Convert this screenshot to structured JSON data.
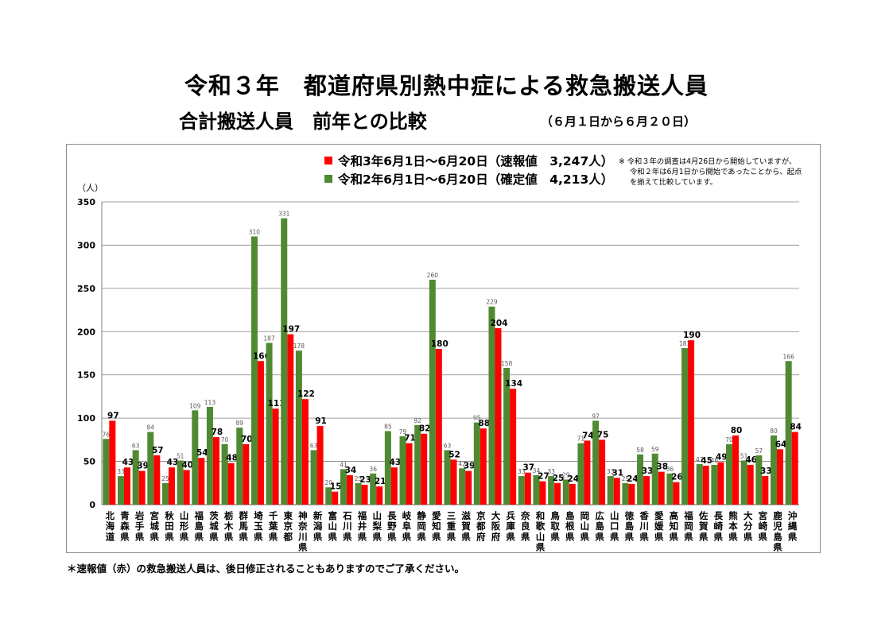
{
  "header": {
    "title_line1": "令和３年　都道府県別熱中症による救急搬送人員",
    "title_line2": "合計搬送人員　前年との比較",
    "period": "（６月１日から６月２０日）"
  },
  "legend": {
    "series_2021": "令和3年6月1日～6月20日（速報値　3,247人）",
    "series_2020": "令和2年6月1日～6月20日（確定値　4,213人）"
  },
  "note": {
    "line1": "※ 令和３年の調査は4月26日から開始していますが、",
    "line2": "令和２年は6月1日から開始であったことから、起点",
    "line3": "を揃えて比較しています。"
  },
  "footnote": "＊速報値（赤）の救急搬送人員は、後日修正されることもありますのでご了承ください。",
  "colors": {
    "red": "#ff0000",
    "green": "#4f8a32",
    "grid": "#808080"
  },
  "chart_data": {
    "type": "bar",
    "ylabel": "（人）",
    "ylim": [
      0,
      350
    ],
    "yticks": [
      0,
      50,
      100,
      150,
      200,
      250,
      300,
      350
    ],
    "grid": true,
    "legend_position": "top",
    "categories": [
      "北海道",
      "青森県",
      "岩手県",
      "宮城県",
      "秋田県",
      "山形県",
      "福島県",
      "茨城県",
      "栃木県",
      "群馬県",
      "埼玉県",
      "千葉県",
      "東京都",
      "神奈川県",
      "新潟県",
      "富山県",
      "石川県",
      "福井県",
      "山梨県",
      "長野県",
      "岐阜県",
      "静岡県",
      "愛知県",
      "三重県",
      "滋賀県",
      "京都府",
      "大阪府",
      "兵庫県",
      "奈良県",
      "和歌山県",
      "鳥取県",
      "島根県",
      "岡山県",
      "広島県",
      "山口県",
      "徳島県",
      "香川県",
      "愛媛県",
      "高知県",
      "福岡県",
      "佐賀県",
      "長崎県",
      "熊本県",
      "大分県",
      "宮崎県",
      "鹿児島県",
      "沖縄県"
    ],
    "series": [
      {
        "name": "令和2年6月1日～6月20日（確定値　4,213人）",
        "color": "#4f8a32",
        "values": [
          76,
          33,
          63,
          84,
          25,
          51,
          109,
          113,
          70,
          89,
          310,
          187,
          331,
          178,
          63,
          20,
          41,
          25,
          36,
          85,
          79,
          92,
          260,
          63,
          42,
          95,
          229,
          158,
          33,
          34,
          33,
          29,
          71,
          97,
          33,
          25,
          58,
          59,
          36,
          181,
          47,
          46,
          70,
          51,
          57,
          80,
          166
        ]
      },
      {
        "name": "令和3年6月1日～6月20日（速報値　3,247人）",
        "color": "#ff0000",
        "values": [
          97,
          43,
          39,
          57,
          43,
          40,
          54,
          78,
          48,
          70,
          166,
          111,
          197,
          122,
          91,
          15,
          34,
          23,
          21,
          43,
          71,
          82,
          180,
          52,
          39,
          88,
          204,
          134,
          37,
          27,
          25,
          24,
          74,
          75,
          31,
          24,
          33,
          38,
          26,
          190,
          45,
          49,
          80,
          46,
          33,
          64,
          84
        ]
      }
    ]
  }
}
